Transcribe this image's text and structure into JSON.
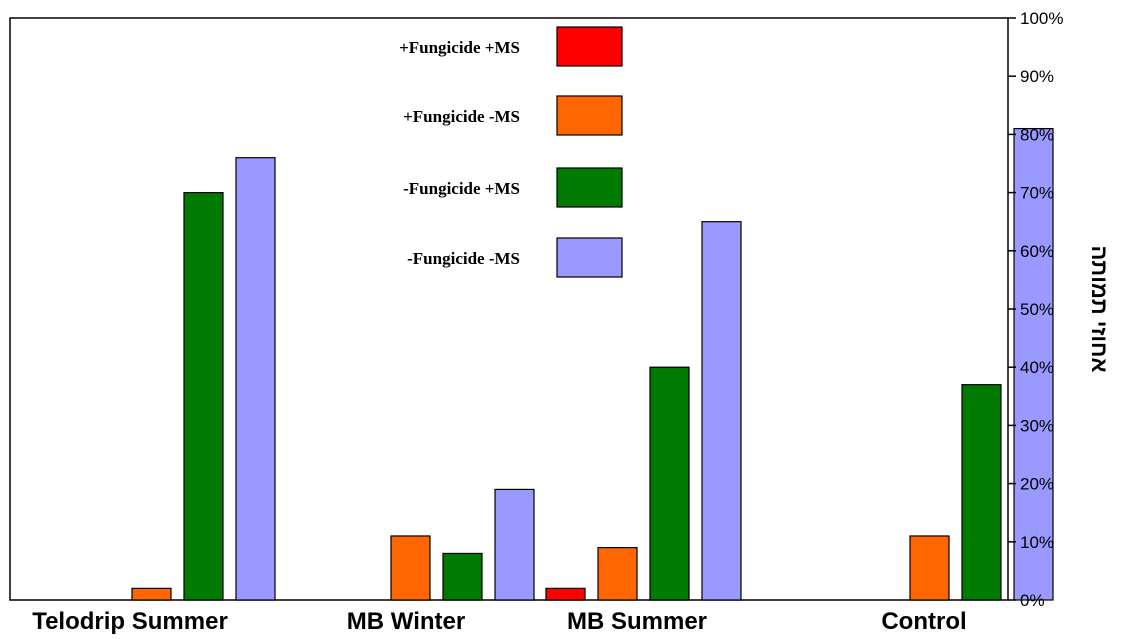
{
  "colors": {
    "series": [
      "#ff0000",
      "#ff6600",
      "#007a00",
      "#9999ff"
    ],
    "axis": "#000000",
    "background": "#ffffff"
  },
  "chart_data": {
    "type": "bar",
    "categories": [
      "Telodrip Summer",
      "MB Winter",
      "MB Summer",
      "Control"
    ],
    "series": [
      {
        "name": "+Fungicide +MS",
        "values": [
          0,
          0,
          2,
          0
        ]
      },
      {
        "name": "+Fungicide -MS",
        "values": [
          2,
          11,
          9,
          11
        ]
      },
      {
        "name": "-Fungicide +MS",
        "values": [
          70,
          8,
          40,
          37
        ]
      },
      {
        "name": "-Fungicide -MS",
        "values": [
          76,
          19,
          65,
          81
        ]
      }
    ],
    "title": "",
    "xlabel": "",
    "ylabel": "אחוזי תמותה",
    "ylim": [
      0,
      100
    ],
    "yticks": [
      "0%",
      "10%",
      "20%",
      "30%",
      "40%",
      "50%",
      "60%",
      "70%",
      "80%",
      "90%",
      "100%"
    ],
    "grid": false,
    "legend": "top-center",
    "y_axis_side": "right"
  }
}
